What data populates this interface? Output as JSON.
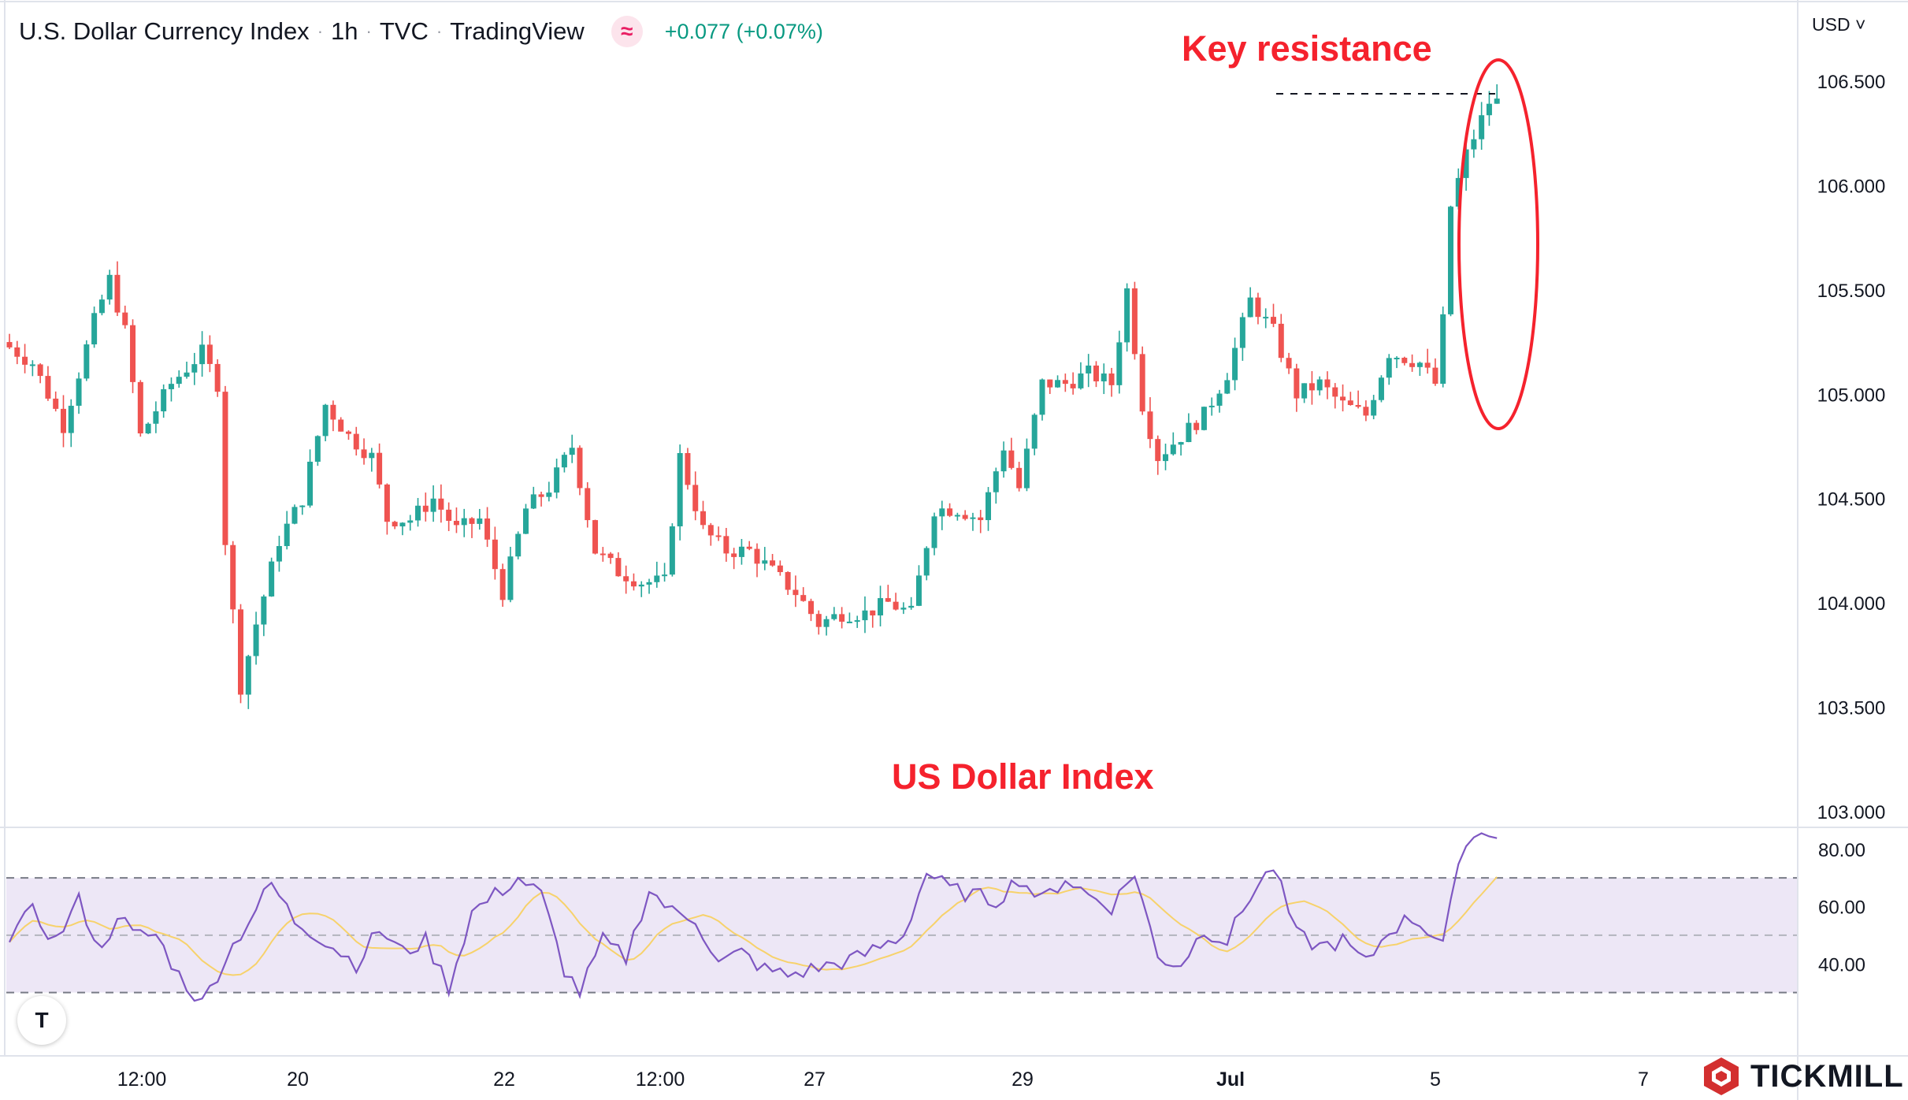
{
  "header": {
    "title": "U.S. Dollar Currency Index",
    "interval": "1h",
    "source": "TVC",
    "platform": "TradingView",
    "change": "+0.077 (+0.07%)",
    "indicator_glyph": "≈",
    "currency": "USD"
  },
  "annotations": {
    "key_resistance": "Key resistance",
    "index_label": "US Dollar Index"
  },
  "brand": {
    "name": "TICKMILL",
    "logo": "tv-logo",
    "tv_mark": "T"
  },
  "colors": {
    "up": "#26a69a",
    "down": "#ef5350",
    "rsi": "#7e57c2",
    "rsi_ma": "#f7d26b",
    "rsi_band": "#ede7f6",
    "annotation": "#f5222d",
    "brand_red": "#d32f2f"
  },
  "chart_data": {
    "type": "candlestick",
    "title": "U.S. Dollar Currency Index",
    "x_tick_labels": [
      "12:00",
      "20",
      "22",
      "12:00",
      "27",
      "29",
      "Jul",
      "5",
      "7"
    ],
    "ylim": [
      103.0,
      106.5
    ],
    "y_ticks": [
      "103.000",
      "103.500",
      "104.000",
      "104.500",
      "105.000",
      "105.500",
      "106.000",
      "106.500"
    ],
    "price_path": [
      [
        0,
        105.25
      ],
      [
        4,
        105.15
      ],
      [
        8,
        104.85
      ],
      [
        12,
        105.35
      ],
      [
        14,
        105.55
      ],
      [
        16,
        105.3
      ],
      [
        18,
        104.8
      ],
      [
        22,
        105.05
      ],
      [
        26,
        105.2
      ],
      [
        28,
        105.05
      ],
      [
        29,
        104.3
      ],
      [
        31,
        103.6
      ],
      [
        33,
        103.9
      ],
      [
        36,
        104.3
      ],
      [
        39,
        104.5
      ],
      [
        42,
        104.95
      ],
      [
        45,
        104.8
      ],
      [
        48,
        104.7
      ],
      [
        50,
        104.4
      ],
      [
        53,
        104.4
      ],
      [
        56,
        104.5
      ],
      [
        59,
        104.35
      ],
      [
        62,
        104.4
      ],
      [
        65,
        104.05
      ],
      [
        68,
        104.45
      ],
      [
        71,
        104.55
      ],
      [
        74,
        104.75
      ],
      [
        77,
        104.25
      ],
      [
        80,
        104.15
      ],
      [
        83,
        104.1
      ],
      [
        86,
        104.1
      ],
      [
        88,
        104.7
      ],
      [
        91,
        104.35
      ],
      [
        94,
        104.25
      ],
      [
        97,
        104.25
      ],
      [
        100,
        104.15
      ],
      [
        103,
        104.05
      ],
      [
        106,
        103.9
      ],
      [
        109,
        103.95
      ],
      [
        112,
        103.95
      ],
      [
        115,
        104.0
      ],
      [
        118,
        103.95
      ],
      [
        121,
        104.45
      ],
      [
        124,
        104.45
      ],
      [
        127,
        104.4
      ],
      [
        130,
        104.75
      ],
      [
        132,
        104.55
      ],
      [
        135,
        105.05
      ],
      [
        138,
        105.05
      ],
      [
        141,
        105.1
      ],
      [
        144,
        105.05
      ],
      [
        146,
        105.5
      ],
      [
        148,
        104.95
      ],
      [
        150,
        104.7
      ],
      [
        153,
        104.8
      ],
      [
        156,
        104.9
      ],
      [
        159,
        105.1
      ],
      [
        162,
        105.45
      ],
      [
        165,
        105.3
      ],
      [
        168,
        105.0
      ],
      [
        171,
        105.05
      ],
      [
        174,
        104.95
      ],
      [
        177,
        104.9
      ],
      [
        180,
        105.2
      ],
      [
        184,
        105.15
      ],
      [
        186,
        105.05
      ],
      [
        187,
        105.35
      ],
      [
        188,
        105.9
      ],
      [
        190,
        106.15
      ],
      [
        193,
        106.4
      ]
    ],
    "rsi": {
      "ylim": [
        20,
        86
      ],
      "y_ticks": [
        "40.00",
        "60.00",
        "80.00"
      ],
      "bands": [
        30,
        50,
        70
      ],
      "path": [
        [
          0,
          50
        ],
        [
          3,
          58
        ],
        [
          6,
          48
        ],
        [
          9,
          62
        ],
        [
          12,
          44
        ],
        [
          14,
          58
        ],
        [
          16,
          50
        ],
        [
          19,
          50
        ],
        [
          22,
          36
        ],
        [
          25,
          26
        ],
        [
          28,
          42
        ],
        [
          31,
          55
        ],
        [
          34,
          68
        ],
        [
          37,
          55
        ],
        [
          40,
          50
        ],
        [
          42,
          46
        ],
        [
          45,
          40
        ],
        [
          48,
          52
        ],
        [
          51,
          44
        ],
        [
          54,
          48
        ],
        [
          57,
          32
        ],
        [
          60,
          58
        ],
        [
          63,
          64
        ],
        [
          66,
          70
        ],
        [
          69,
          64
        ],
        [
          72,
          38
        ],
        [
          74,
          30
        ],
        [
          77,
          48
        ],
        [
          80,
          42
        ],
        [
          83,
          66
        ],
        [
          86,
          58
        ],
        [
          89,
          56
        ],
        [
          92,
          40
        ],
        [
          95,
          44
        ],
        [
          98,
          38
        ],
        [
          101,
          36
        ],
        [
          104,
          38
        ],
        [
          107,
          40
        ],
        [
          110,
          42
        ],
        [
          113,
          46
        ],
        [
          116,
          50
        ],
        [
          119,
          72
        ],
        [
          122,
          66
        ],
        [
          125,
          64
        ],
        [
          128,
          62
        ],
        [
          131,
          70
        ],
        [
          134,
          62
        ],
        [
          137,
          70
        ],
        [
          140,
          64
        ],
        [
          143,
          60
        ],
        [
          146,
          72
        ],
        [
          149,
          42
        ],
        [
          152,
          40
        ],
        [
          155,
          52
        ],
        [
          158,
          48
        ],
        [
          161,
          64
        ],
        [
          164,
          74
        ],
        [
          167,
          50
        ],
        [
          170,
          46
        ],
        [
          173,
          48
        ],
        [
          176,
          40
        ],
        [
          179,
          52
        ],
        [
          182,
          56
        ],
        [
          186,
          48
        ],
        [
          189,
          84
        ],
        [
          192,
          86
        ]
      ]
    }
  }
}
